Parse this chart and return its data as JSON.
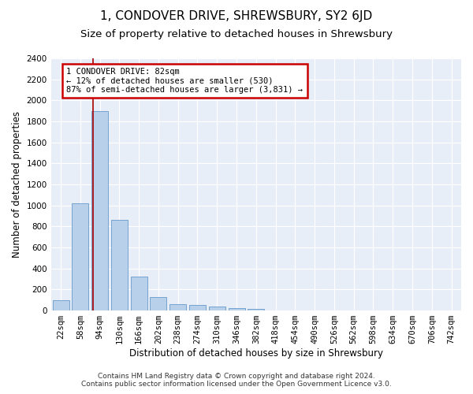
{
  "title": "1, CONDOVER DRIVE, SHREWSBURY, SY2 6JD",
  "subtitle": "Size of property relative to detached houses in Shrewsbury",
  "xlabel": "Distribution of detached houses by size in Shrewsbury",
  "ylabel": "Number of detached properties",
  "footer_line1": "Contains HM Land Registry data © Crown copyright and database right 2024.",
  "footer_line2": "Contains public sector information licensed under the Open Government Licence v3.0.",
  "bar_labels": [
    "22sqm",
    "58sqm",
    "94sqm",
    "130sqm",
    "166sqm",
    "202sqm",
    "238sqm",
    "274sqm",
    "310sqm",
    "346sqm",
    "382sqm",
    "418sqm",
    "454sqm",
    "490sqm",
    "526sqm",
    "562sqm",
    "598sqm",
    "634sqm",
    "670sqm",
    "706sqm",
    "742sqm"
  ],
  "bar_values": [
    100,
    1020,
    1900,
    860,
    320,
    125,
    60,
    55,
    35,
    22,
    15,
    0,
    0,
    0,
    0,
    0,
    0,
    0,
    0,
    0,
    0
  ],
  "bar_color": "#b8d0ea",
  "bar_edge_color": "#6699cc",
  "background_color": "#e8eef8",
  "grid_color": "#ffffff",
  "annotation_text": "1 CONDOVER DRIVE: 82sqm\n← 12% of detached houses are smaller (530)\n87% of semi-detached houses are larger (3,831) →",
  "annotation_box_color": "#ffffff",
  "annotation_box_edge": "#cc0000",
  "ylim": [
    0,
    2400
  ],
  "yticks": [
    0,
    200,
    400,
    600,
    800,
    1000,
    1200,
    1400,
    1600,
    1800,
    2000,
    2200,
    2400
  ],
  "red_line_color": "#aa0000",
  "title_fontsize": 11,
  "subtitle_fontsize": 9.5,
  "axis_label_fontsize": 8.5,
  "tick_fontsize": 7.5,
  "footer_fontsize": 6.5
}
